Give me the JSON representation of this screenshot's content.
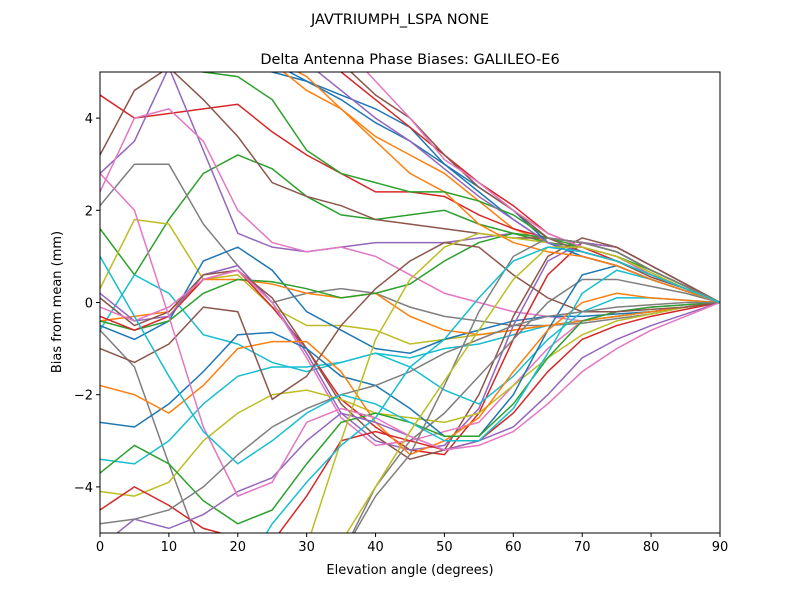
{
  "suptitle": "JAVTRIUMPH_LSPA NONE",
  "chart_data": {
    "type": "line",
    "title": "Delta Antenna Phase Biases: GALILEO-E6",
    "xlabel": "Elevation angle (degrees)",
    "ylabel": "Bias from mean (mm)",
    "xlim": [
      0,
      90
    ],
    "ylim": [
      -5,
      5
    ],
    "xticks": [
      "0",
      "10",
      "20",
      "30",
      "40",
      "50",
      "60",
      "70",
      "80",
      "90"
    ],
    "yticks": [
      "−4",
      "−2",
      "0",
      "2",
      "4"
    ],
    "ytick_values": [
      -4,
      -2,
      0,
      2,
      4
    ],
    "xtick_values": [
      0,
      10,
      20,
      30,
      40,
      50,
      60,
      70,
      80,
      90
    ],
    "grid": false,
    "colors": [
      "#1f77b4",
      "#ff7f0e",
      "#2ca02c",
      "#d62728",
      "#9467bd",
      "#8c564b",
      "#e377c2",
      "#7f7f7f",
      "#bcbd22",
      "#17becf"
    ],
    "x": [
      0,
      5,
      10,
      15,
      20,
      25,
      30,
      35,
      40,
      45,
      50,
      55,
      60,
      65,
      70,
      75,
      80,
      85,
      90
    ],
    "series": [
      {
        "values": [
          5.5,
          5.6,
          5.5,
          5.4,
          5.2,
          5.0,
          4.8,
          4.5,
          4.2,
          3.8,
          3.0,
          2.4,
          1.8,
          1.3,
          1.0,
          0.8,
          0.5,
          0.25,
          0
        ]
      },
      {
        "values": [
          5.8,
          5.7,
          5.6,
          5.5,
          5.4,
          5.2,
          4.6,
          4.2,
          3.6,
          3.2,
          2.8,
          2.2,
          1.6,
          1.3,
          1.1,
          0.9,
          0.6,
          0.3,
          0
        ]
      },
      {
        "values": [
          1.6,
          0.6,
          1.8,
          2.8,
          3.2,
          2.9,
          2.3,
          1.9,
          1.8,
          1.9,
          2.0,
          1.7,
          1.5,
          1.3,
          1.2,
          1.0,
          0.6,
          0.3,
          0
        ]
      },
      {
        "values": [
          4.5,
          4.0,
          4.1,
          4.2,
          4.3,
          3.7,
          3.2,
          2.8,
          2.4,
          2.4,
          2.3,
          1.9,
          1.6,
          1.4,
          1.3,
          1.1,
          0.7,
          0.35,
          0
        ]
      },
      {
        "values": [
          2.8,
          3.5,
          5.1,
          3.3,
          1.5,
          1.2,
          1.1,
          1.2,
          1.3,
          1.3,
          1.3,
          1.4,
          1.5,
          1.4,
          1.3,
          1.1,
          0.7,
          0.35,
          0
        ]
      },
      {
        "values": [
          3.2,
          4.6,
          5.1,
          4.4,
          3.6,
          2.6,
          2.3,
          2.1,
          1.8,
          1.7,
          1.6,
          1.5,
          1.4,
          1.4,
          1.3,
          1.1,
          0.7,
          0.35,
          0
        ]
      },
      {
        "values": [
          2.4,
          4.0,
          4.2,
          3.5,
          2.0,
          1.3,
          1.1,
          1.2,
          1.0,
          0.6,
          0.2,
          0.0,
          -0.2,
          -0.3,
          -0.4,
          -0.3,
          -0.2,
          -0.1,
          0
        ]
      },
      {
        "values": [
          2.1,
          3.0,
          3.0,
          1.7,
          0.8,
          0.0,
          0.2,
          0.3,
          0.2,
          -0.1,
          -0.3,
          -0.4,
          -0.5,
          -0.5,
          -0.45,
          -0.35,
          -0.25,
          -0.1,
          0
        ]
      },
      {
        "values": [
          0.3,
          1.8,
          1.7,
          0.5,
          0.6,
          -0.1,
          -0.5,
          -0.5,
          -0.6,
          -0.9,
          -0.8,
          -0.7,
          -0.6,
          -0.5,
          -0.4,
          -0.3,
          -0.2,
          -0.1,
          0
        ]
      },
      {
        "values": [
          -0.6,
          0.6,
          0.2,
          -0.7,
          -0.9,
          -1.3,
          -1.5,
          -1.3,
          -1.1,
          -1.2,
          -1.0,
          -0.9,
          -0.7,
          -0.5,
          -0.4,
          -0.3,
          -0.2,
          -0.1,
          0
        ]
      },
      {
        "values": [
          -0.5,
          -0.8,
          -0.4,
          0.9,
          1.2,
          0.7,
          -0.2,
          -0.6,
          -1.0,
          -1.1,
          -0.8,
          -0.6,
          -0.4,
          -0.3,
          -0.3,
          -0.25,
          -0.2,
          -0.1,
          0
        ]
      },
      {
        "values": [
          -0.4,
          -0.3,
          -0.2,
          0.5,
          0.5,
          0.4,
          0.2,
          0.1,
          0.2,
          -0.3,
          -0.6,
          -0.7,
          -0.6,
          -0.5,
          -0.4,
          -0.3,
          -0.2,
          -0.1,
          0
        ]
      },
      {
        "values": [
          -0.4,
          -0.6,
          -0.4,
          0.2,
          0.5,
          0.45,
          0.3,
          0.1,
          0.2,
          0.4,
          0.9,
          1.3,
          1.5,
          1.4,
          1.3,
          1.1,
          0.7,
          0.35,
          0
        ]
      },
      {
        "values": [
          -0.3,
          -0.6,
          -0.3,
          0.5,
          0.7,
          -0.1,
          -1.0,
          -2.1,
          -2.7,
          -3.2,
          -3.3,
          -2.4,
          -0.8,
          0.6,
          1.3,
          1.2,
          0.8,
          0.4,
          0
        ]
      },
      {
        "values": [
          0.2,
          -0.4,
          -0.3,
          0.6,
          0.8,
          0.0,
          -1.1,
          -2.4,
          -3.0,
          -3.2,
          -3.1,
          -2.3,
          -0.5,
          0.9,
          1.3,
          1.2,
          0.8,
          0.4,
          0
        ]
      },
      {
        "values": [
          0.1,
          -0.5,
          -0.2,
          0.6,
          0.7,
          0.1,
          -1.0,
          -2.2,
          -2.9,
          -3.4,
          -3.2,
          -2.0,
          -0.3,
          1.0,
          1.4,
          1.2,
          0.8,
          0.4,
          0
        ]
      },
      {
        "values": [
          -0.1,
          -0.4,
          -0.1,
          0.5,
          0.7,
          0.0,
          -1.2,
          -2.5,
          -3.1,
          -3.0,
          -2.8,
          -2.6,
          -1.8,
          -1.0,
          -0.4,
          -0.2,
          -0.1,
          -0.05,
          0
        ]
      },
      {
        "values": [
          -0.6,
          -1.4,
          -3.5,
          -5.5,
          -6,
          -6,
          -6,
          -5.5,
          -4.0,
          -3.0,
          -2.4,
          -1.6,
          -0.8,
          0.0,
          0.5,
          0.5,
          0.35,
          0.2,
          0
        ]
      },
      {
        "values": [
          -4.1,
          -4.2,
          -3.9,
          -3.0,
          -2.4,
          -2.0,
          -1.9,
          -2.1,
          -2.4,
          -2.5,
          -2.6,
          -2.4,
          -1.8,
          -1.2,
          -0.7,
          -0.4,
          -0.25,
          -0.1,
          0
        ]
      },
      {
        "values": [
          -3.4,
          -3.5,
          -3.0,
          -2.2,
          -1.6,
          -1.4,
          -1.4,
          -1.3,
          -1.1,
          -1.4,
          -1.9,
          -2.2,
          -1.6,
          -0.8,
          -0.2,
          0.1,
          0.1,
          0.05,
          0
        ]
      },
      {
        "values": [
          -2.6,
          -2.7,
          -2.2,
          -1.5,
          -0.7,
          -0.65,
          -1.0,
          -1.6,
          -1.8,
          -2.3,
          -2.9,
          -2.9,
          -2.0,
          -0.6,
          0.6,
          0.8,
          0.5,
          0.25,
          0
        ]
      },
      {
        "values": [
          -1.8,
          -2.0,
          -2.4,
          -1.8,
          -1.0,
          -0.85,
          -0.85,
          -1.5,
          -2.6,
          -3.3,
          -3.0,
          -2.5,
          -1.5,
          -0.6,
          0.0,
          0.2,
          0.1,
          0.05,
          0
        ]
      },
      {
        "values": [
          -3.7,
          -3.1,
          -3.5,
          -4.3,
          -4.8,
          -4.5,
          -3.5,
          -2.6,
          -2.4,
          -2.6,
          -2.9,
          -2.9,
          -2.2,
          -1.2,
          -0.4,
          -0.2,
          -0.1,
          -0.05,
          0
        ]
      },
      {
        "values": [
          -4.5,
          -4.0,
          -4.4,
          -4.9,
          -5.1,
          -5.2,
          -4.2,
          -3.0,
          -2.8,
          -3.0,
          -3.2,
          -3.0,
          -2.4,
          -1.5,
          -0.8,
          -0.5,
          -0.3,
          -0.15,
          0
        ]
      },
      {
        "values": [
          -5.3,
          -4.7,
          -4.9,
          -4.6,
          -4.1,
          -3.8,
          -3.0,
          -2.4,
          -2.6,
          -2.9,
          -3.2,
          -3.0,
          -2.7,
          -2.0,
          -1.2,
          -0.8,
          -0.5,
          -0.25,
          0
        ]
      },
      {
        "values": [
          -1.0,
          -1.3,
          -0.9,
          -0.1,
          -0.2,
          -2.1,
          -1.6,
          -0.5,
          0.3,
          0.9,
          1.3,
          1.2,
          0.6,
          0.1,
          -0.2,
          -0.2,
          -0.15,
          -0.1,
          0
        ]
      },
      {
        "values": [
          2.8,
          2.0,
          -0.3,
          -2.7,
          -4.2,
          -3.9,
          -2.6,
          -2.3,
          -2.5,
          -2.9,
          -3.2,
          -3.1,
          -2.8,
          -2.2,
          -1.5,
          -1.0,
          -0.6,
          -0.3,
          0
        ]
      },
      {
        "values": [
          -4.8,
          -4.7,
          -4.5,
          -4.0,
          -3.3,
          -2.7,
          -2.3,
          -2.0,
          -1.8,
          -1.5,
          -1.1,
          -0.8,
          -0.5,
          -0.3,
          -0.2,
          -0.1,
          -0.05,
          0,
          0
        ]
      },
      {
        "values": [
          -5.3,
          -5.2,
          -5.4,
          -5.5,
          -5.6,
          -5.5,
          -5.3,
          -3.0,
          -0.8,
          0.5,
          1.2,
          1.5,
          1.4,
          1.3,
          1.1,
          0.9,
          0.6,
          0.3,
          0
        ]
      },
      {
        "values": [
          1.0,
          -0.3,
          -1.6,
          -2.8,
          -3.5,
          -3.0,
          -2.4,
          -2.0,
          -2.2,
          -2.6,
          -3.0,
          -3.0,
          -2.3,
          -1.1,
          0.2,
          0.7,
          0.5,
          0.25,
          0
        ]
      },
      {
        "values": [
          5.8,
          5.8,
          5.6,
          5.5,
          5.4,
          5.2,
          4.8,
          4.4,
          3.9,
          3.5,
          3.0,
          2.5,
          2.0,
          1.3,
          1.0,
          0.8,
          0.5,
          0.25,
          0
        ]
      },
      {
        "values": [
          5.5,
          5.5,
          5.5,
          5.5,
          5.5,
          5.3,
          4.9,
          4.2,
          3.5,
          2.8,
          2.4,
          1.7,
          1.3,
          1.1,
          1.0,
          0.8,
          0.5,
          0.25,
          0
        ]
      },
      {
        "values": [
          5.2,
          5.1,
          5.1,
          5.0,
          4.9,
          4.4,
          3.3,
          2.8,
          2.6,
          2.4,
          2.4,
          2.2,
          1.9,
          1.4,
          1.2,
          1.0,
          0.7,
          0.35,
          0
        ]
      },
      {
        "values": [
          6,
          6,
          6,
          6,
          6,
          6,
          5.5,
          5.0,
          4.4,
          3.8,
          3.2,
          2.6,
          2.1,
          1.5,
          1.2,
          0.9,
          0.6,
          0.3,
          0
        ]
      },
      {
        "values": [
          6,
          6,
          6,
          6,
          6,
          5.8,
          5.2,
          4.6,
          4.0,
          3.5,
          2.9,
          2.3,
          1.8,
          1.3,
          1.1,
          0.9,
          0.6,
          0.3,
          0
        ]
      },
      {
        "values": [
          6,
          6,
          6,
          6,
          6,
          6,
          6,
          5.2,
          4.5,
          4.0,
          3.2,
          2.5,
          2.0,
          1.4,
          1.1,
          0.9,
          0.55,
          0.3,
          0
        ]
      },
      {
        "values": [
          6,
          6,
          6,
          6,
          6,
          6,
          6,
          5.6,
          4.8,
          4.0,
          3.1,
          2.6,
          2.0,
          1.5,
          1.2,
          1.0,
          0.6,
          0.3,
          0
        ]
      },
      {
        "values": [
          -6,
          -6,
          -6,
          -6,
          -6,
          -6,
          -6,
          -5.5,
          -4.2,
          -3.3,
          -1.8,
          -0.2,
          1.0,
          1.4,
          1.3,
          1.1,
          0.7,
          0.35,
          0
        ]
      },
      {
        "values": [
          -6,
          -6,
          -6,
          -6,
          -6,
          -6,
          -6,
          -5.2,
          -4.0,
          -2.8,
          -1.7,
          -0.6,
          0.5,
          1.2,
          1.2,
          1.0,
          0.65,
          0.3,
          0
        ]
      },
      {
        "values": [
          -6,
          -6,
          -6,
          -6,
          -6,
          -4.8,
          -3.9,
          -3.1,
          -2.5,
          -1.4,
          -0.8,
          0.1,
          0.9,
          1.2,
          1.1,
          0.9,
          0.6,
          0.3,
          0
        ]
      }
    ]
  }
}
